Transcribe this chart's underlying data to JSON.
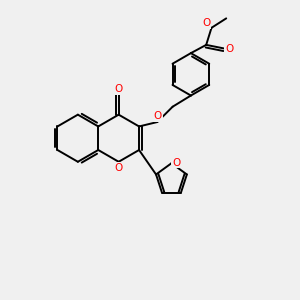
{
  "bg_color": "#f0f0f0",
  "bond_color": "#000000",
  "oxygen_color": "#ff0000",
  "line_width": 1.4,
  "figsize": [
    3.0,
    3.0
  ],
  "dpi": 100,
  "xlim": [
    0,
    10
  ],
  "ylim": [
    0,
    10
  ]
}
